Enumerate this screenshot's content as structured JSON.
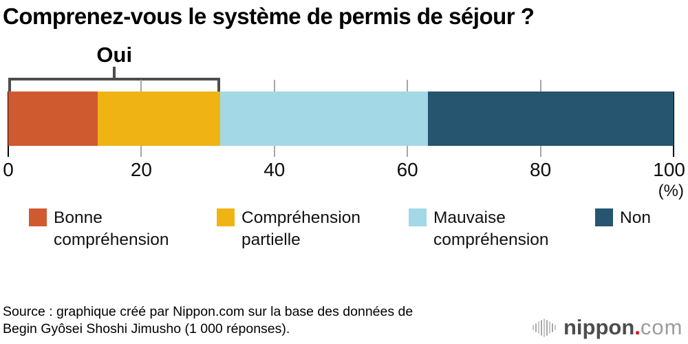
{
  "title": "Comprenez-vous le système de permis de séjour ?",
  "chart_data": {
    "type": "bar",
    "subtype": "horizontal-stacked-single-bar",
    "title": "Comprenez-vous le système de permis de séjour ?",
    "categories": [
      "Bonne compréhension",
      "Compréhension partielle",
      "Mauvaise compréhension",
      "Non"
    ],
    "values": [
      13.4,
      18.5,
      31.2,
      36.9
    ],
    "colors": [
      "#d05a30",
      "#efb414",
      "#a3d8e6",
      "#25556f"
    ],
    "axis": {
      "min": 0,
      "max": 100,
      "ticks": [
        0,
        20,
        40,
        60,
        80,
        100
      ],
      "unit_label": "(%)"
    },
    "annotation": {
      "label": "Oui",
      "covers_categories": [
        "Bonne compréhension",
        "Compréhension partielle"
      ],
      "total_pct": 31.9
    },
    "legend_position": "bottom",
    "grid": false
  },
  "legend": {
    "items": [
      {
        "label_lines": [
          "Bonne",
          "compréhension"
        ],
        "color": "#d05a30"
      },
      {
        "label_lines": [
          "Compréhension",
          "partielle"
        ],
        "color": "#efb414"
      },
      {
        "label_lines": [
          "Mauvaise",
          "compréhension"
        ],
        "color": "#a3d8e6"
      },
      {
        "label_lines": [
          "Non"
        ],
        "color": "#25556f"
      }
    ]
  },
  "source": {
    "line1": "Source : graphique créé par Nippon.com sur la base des données de",
    "line2": "Begin Gyôsei Shoshi Jimusho (1 000 réponses)."
  },
  "logo": {
    "icon": "waveform-icon",
    "name": "nippon",
    "dot": ".",
    "tld": "com"
  },
  "colors": {
    "bracket": "#4d4d4d",
    "tick_gray": "#a6a6a6",
    "axis_black": "#000000",
    "logo_red": "#e60012"
  }
}
